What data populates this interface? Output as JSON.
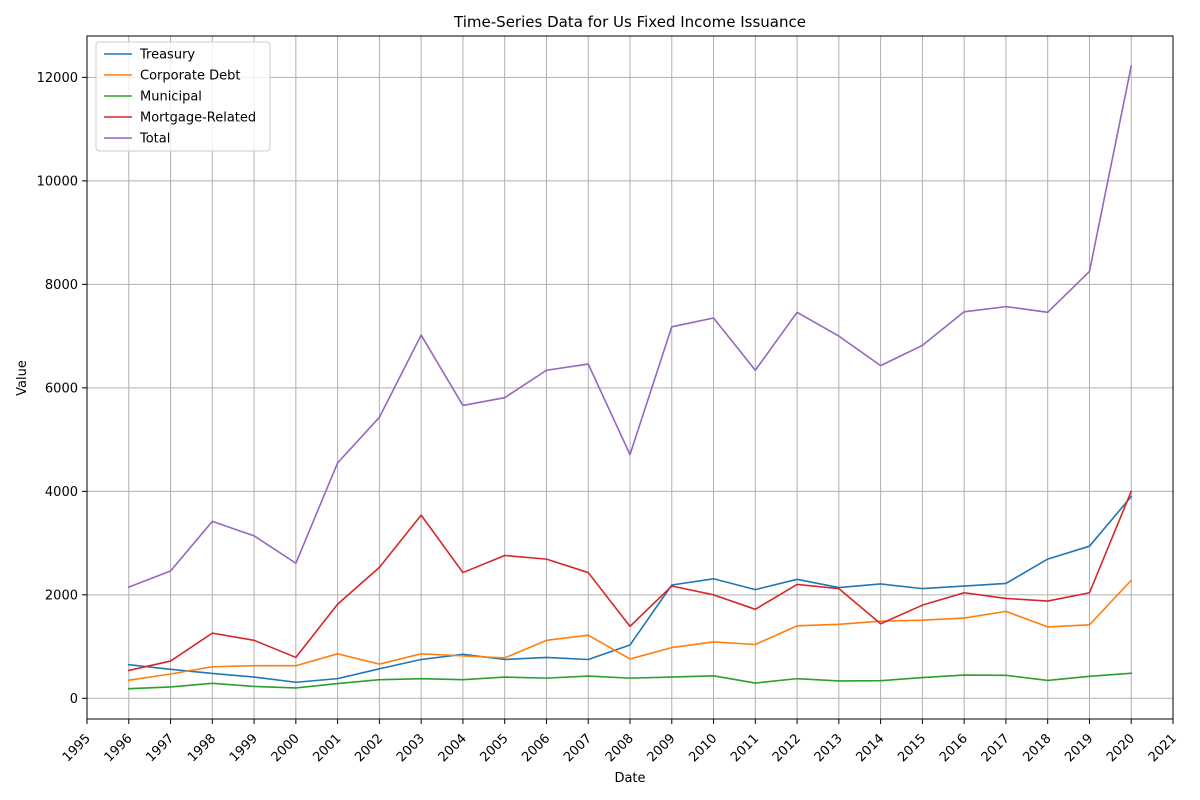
{
  "chart_data": {
    "type": "line",
    "title": "Time-Series Data for Us Fixed Income Issuance",
    "xlabel": "Date",
    "ylabel": "Value",
    "x": [
      "1996",
      "1997",
      "1998",
      "1999",
      "2000",
      "2001",
      "2002",
      "2003",
      "2004",
      "2005",
      "2006",
      "2007",
      "2008",
      "2009",
      "2010",
      "2011",
      "2012",
      "2013",
      "2014",
      "2015",
      "2016",
      "2017",
      "2018",
      "2019",
      "2020"
    ],
    "x_ticks": [
      "1995",
      "1996",
      "1997",
      "1998",
      "1999",
      "2000",
      "2001",
      "2002",
      "2003",
      "2004",
      "2005",
      "2006",
      "2007",
      "2008",
      "2009",
      "2010",
      "2011",
      "2012",
      "2013",
      "2014",
      "2015",
      "2016",
      "2017",
      "2018",
      "2019",
      "2020",
      "2021"
    ],
    "xlim": [
      1995,
      2021
    ],
    "ylim": [
      -400,
      12800
    ],
    "y_ticks": [
      "0",
      "2000",
      "4000",
      "6000",
      "8000",
      "10000",
      "12000"
    ],
    "grid": true,
    "legend_position": "upper-left",
    "series": [
      {
        "name": "Treasury",
        "color": "#1f77b4",
        "values": [
          650,
          560,
          480,
          410,
          310,
          380,
          570,
          750,
          850,
          750,
          790,
          750,
          1030,
          2190,
          2310,
          2100,
          2300,
          2140,
          2210,
          2120,
          2170,
          2220,
          2690,
          2940,
          3900
        ]
      },
      {
        "name": "Corporate Debt",
        "color": "#ff7f0e",
        "values": [
          350,
          470,
          610,
          630,
          630,
          860,
          660,
          860,
          820,
          780,
          1120,
          1220,
          760,
          980,
          1090,
          1040,
          1400,
          1430,
          1490,
          1510,
          1550,
          1680,
          1380,
          1420,
          2280
        ]
      },
      {
        "name": "Municipal",
        "color": "#2ca02c",
        "values": [
          185,
          220,
          290,
          230,
          200,
          285,
          360,
          380,
          360,
          410,
          390,
          430,
          390,
          410,
          435,
          295,
          380,
          335,
          340,
          400,
          450,
          445,
          345,
          425,
          485
        ]
      },
      {
        "name": "Mortgage-Related",
        "color": "#d62728",
        "values": [
          540,
          720,
          1260,
          1120,
          790,
          1820,
          2530,
          3540,
          2430,
          2760,
          2690,
          2430,
          1390,
          2170,
          2000,
          1720,
          2200,
          2120,
          1440,
          1800,
          2040,
          1930,
          1880,
          2040,
          4000
        ]
      },
      {
        "name": "Total",
        "color": "#9467bd",
        "values": [
          2150,
          2460,
          3420,
          3140,
          2610,
          4550,
          5430,
          7020,
          5660,
          5810,
          6340,
          6460,
          4710,
          7180,
          7350,
          6340,
          7460,
          7000,
          6430,
          6820,
          7470,
          7570,
          7460,
          8250,
          12220
        ]
      }
    ]
  }
}
